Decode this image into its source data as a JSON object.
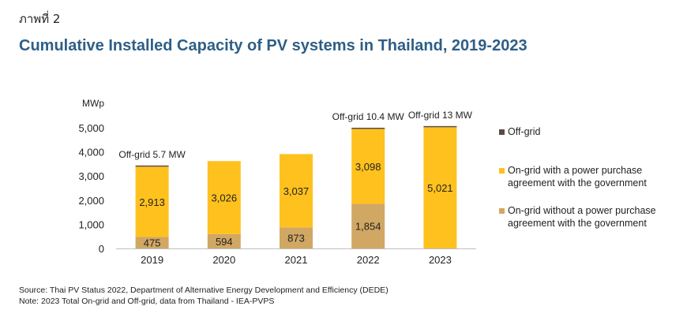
{
  "figure_label": "ภาพที่ 2",
  "chart_data": {
    "type": "bar",
    "stacked": true,
    "title": "Cumulative Installed Capacity of PV systems in Thailand, 2019-2023",
    "ylabel": "MWp",
    "xlabel": "",
    "ylim": [
      0,
      5000
    ],
    "yticks": [
      0,
      1000,
      2000,
      3000,
      4000,
      5000
    ],
    "ytick_labels": [
      "0",
      "1,000",
      "2,000",
      "3,000",
      "4,000",
      "5,000"
    ],
    "categories": [
      "2019",
      "2020",
      "2021",
      "2022",
      "2023"
    ],
    "series": [
      {
        "name": "On-grid without a power purchase agreement with the government",
        "legend_lines": [
          "On-grid without a power purchase",
          "agreement with the government"
        ],
        "color": "#D1A764",
        "values": [
          475,
          594,
          873,
          1854,
          0
        ],
        "labels": [
          "475",
          "594",
          "873",
          "1,854",
          ""
        ]
      },
      {
        "name": "On-grid with a power purchase agreement with the government",
        "legend_lines": [
          "On-grid with a power purchase",
          "agreement with the government"
        ],
        "color": "#FFC11E",
        "values": [
          2913,
          3026,
          3037,
          3098,
          5021
        ],
        "labels": [
          "2,913",
          "3,026",
          "3,037",
          "3,098",
          "5,021"
        ]
      },
      {
        "name": "Off-grid",
        "legend_lines": [
          "Off-grid"
        ],
        "color": "#5B4A45",
        "values": [
          5.7,
          0,
          0,
          10.4,
          13
        ],
        "labels": [
          "",
          "",
          "",
          "",
          ""
        ]
      }
    ],
    "annotations": [
      {
        "category": "2019",
        "text": "Off-grid 5.7 MW"
      },
      {
        "category": "2022",
        "text": "Off-grid 10.4 MW"
      },
      {
        "category": "2023",
        "text": "Off-grid 13 MW"
      }
    ],
    "legend_position": "right"
  },
  "notes": {
    "source": "Source: Thai PV Status 2022, Department of Alternative Energy Development and Efficiency (DEDE)",
    "note": "Note: 2023 Total On-grid and Off-grid, data from Thailand - IEA-PVPS"
  }
}
